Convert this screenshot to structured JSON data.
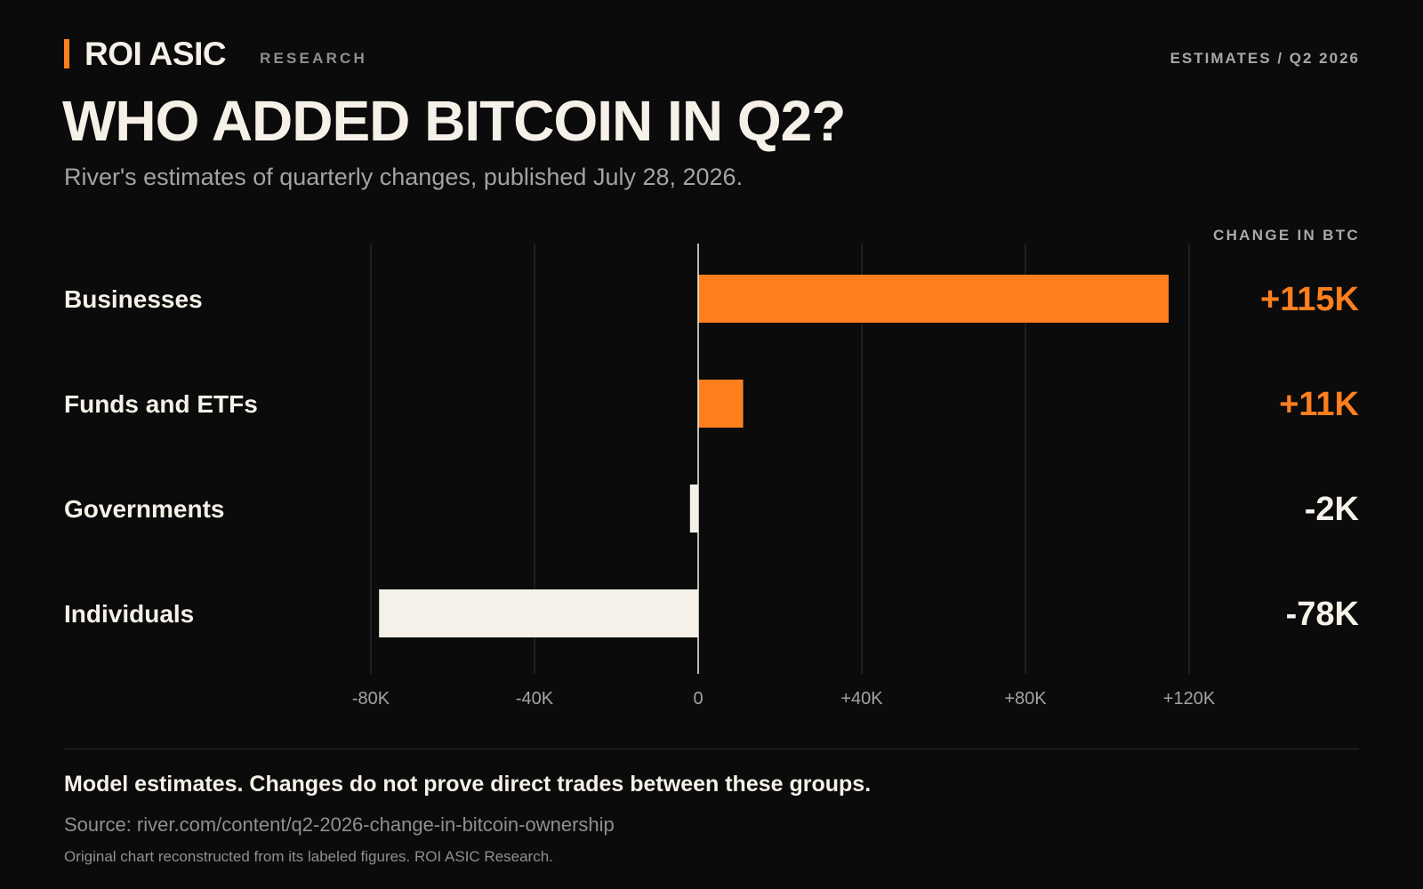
{
  "brand": {
    "name": "ROI ASIC",
    "section": "RESEARCH",
    "edition": "ESTIMATES / Q2 2026"
  },
  "header": {
    "title": "WHO ADDED BITCOIN IN Q2?",
    "subtitle": "River's estimates of quarterly changes, published July 28, 2026."
  },
  "colors": {
    "background": "#0b0b0b",
    "accent": "#ff7f1f",
    "positive_bar": "#ff7f1f",
    "negative_bar": "#f5f1e8",
    "text": "#f5f1e8",
    "muted": "#a3a3a3",
    "gridline": "#262626"
  },
  "chart_data": {
    "type": "bar",
    "orientation": "horizontal",
    "value_column_header": "CHANGE IN BTC",
    "categories": [
      "Businesses",
      "Funds and ETFs",
      "Governments",
      "Individuals"
    ],
    "values": [
      115000,
      11000,
      -2000,
      -78000
    ],
    "value_labels": [
      "+115K",
      "+11K",
      "-2K",
      "-78K"
    ],
    "xlim": [
      -80000,
      120000
    ],
    "x_ticks": [
      -80000,
      -40000,
      0,
      40000,
      80000,
      120000
    ],
    "x_tick_labels": [
      "-80K",
      "-40K",
      "0",
      "+40K",
      "+80K",
      "+120K"
    ],
    "grid": true,
    "title": "WHO ADDED BITCOIN IN Q2?",
    "xlabel": "",
    "ylabel": ""
  },
  "footer": {
    "note": "Model estimates. Changes do not prove direct trades between these groups.",
    "source": "Source: river.com/content/q2-2026-change-in-bitcoin-ownership",
    "credit": "Original chart reconstructed from its labeled figures. ROI ASIC Research."
  }
}
